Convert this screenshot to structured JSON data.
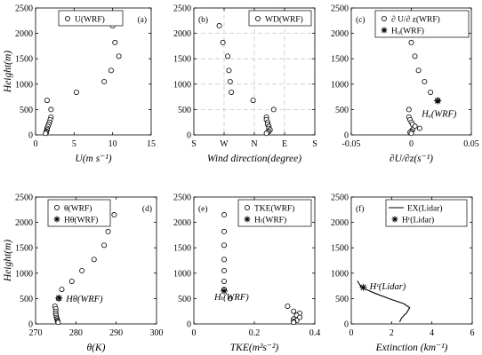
{
  "chart_data": [
    {
      "type": "scatter",
      "panel_label": "(a)",
      "xlabel": "U(m s⁻¹)",
      "ylabel": "Height(m)",
      "xlim": [
        0,
        15
      ],
      "ylim": [
        0,
        2500
      ],
      "xticks": [
        "0",
        "5",
        "10",
        "15"
      ],
      "yticks": [
        "0",
        "500",
        "1000",
        "1500",
        "2000",
        "2500"
      ],
      "grid": false,
      "legend_position": "top-left",
      "series": [
        {
          "name": "U(WRF)",
          "marker": "circle",
          "points": [
            [
              10.0,
              2150
            ],
            [
              10.3,
              1820
            ],
            [
              10.8,
              1550
            ],
            [
              9.8,
              1270
            ],
            [
              8.9,
              1050
            ],
            [
              5.3,
              840
            ],
            [
              1.5,
              680
            ],
            [
              2.0,
              500
            ],
            [
              2.0,
              350
            ],
            [
              1.9,
              300
            ],
            [
              1.8,
              250
            ],
            [
              1.7,
              210
            ],
            [
              1.6,
              170
            ],
            [
              1.5,
              130
            ],
            [
              1.5,
              100
            ],
            [
              1.4,
              70
            ],
            [
              1.4,
              50
            ],
            [
              1.3,
              30
            ]
          ]
        }
      ]
    },
    {
      "type": "scatter",
      "panel_label": "(b)",
      "xlabel": "Wind direction(degree)",
      "ylabel": "",
      "xlim": [
        0,
        5
      ],
      "ylim": [
        0,
        2500
      ],
      "xticks": [
        "S",
        "W",
        "N",
        "E",
        "S"
      ],
      "yticks": [
        "0",
        "500",
        "1000",
        "1500",
        "2000",
        "2500"
      ],
      "grid": true,
      "legend_position": "top-right",
      "series": [
        {
          "name": "WD(WRF)",
          "marker": "circle",
          "points": [
            [
              1.05,
              2150
            ],
            [
              1.2,
              1820
            ],
            [
              1.4,
              1550
            ],
            [
              1.45,
              1270
            ],
            [
              1.5,
              1050
            ],
            [
              1.55,
              840
            ],
            [
              2.45,
              680
            ],
            [
              3.3,
              500
            ],
            [
              3.0,
              350
            ],
            [
              3.0,
              300
            ],
            [
              3.05,
              250
            ],
            [
              3.05,
              210
            ],
            [
              3.1,
              170
            ],
            [
              3.1,
              130
            ],
            [
              3.15,
              100
            ],
            [
              3.1,
              70
            ],
            [
              3.05,
              50
            ],
            [
              3.0,
              30
            ]
          ]
        }
      ]
    },
    {
      "type": "scatter",
      "panel_label": "(c)",
      "xlabel": "∂U/∂z(s⁻¹)",
      "ylabel": "",
      "xlim": [
        -0.05,
        0.05
      ],
      "ylim": [
        0,
        2500
      ],
      "xticks": [
        "-0.05",
        "0",
        "0.05"
      ],
      "yticks": [
        "0",
        "500",
        "1000",
        "1500",
        "2000",
        "2500"
      ],
      "grid": false,
      "legend_position": "top-right",
      "series": [
        {
          "name": "∂ U/∂ z(WRF)",
          "marker": "circle",
          "points": [
            [
              -0.001,
              2150
            ],
            [
              0.0,
              1820
            ],
            [
              0.003,
              1550
            ],
            [
              0.006,
              1270
            ],
            [
              0.011,
              1050
            ],
            [
              0.016,
              840
            ],
            [
              0.022,
              680
            ],
            [
              -0.002,
              500
            ],
            [
              -0.002,
              350
            ],
            [
              -0.001,
              300
            ],
            [
              0.0,
              250
            ],
            [
              0.001,
              210
            ],
            [
              0.003,
              170
            ],
            [
              0.007,
              130
            ],
            [
              0.001,
              100
            ],
            [
              0.0,
              70
            ],
            [
              -0.001,
              50
            ],
            [
              0.0,
              30
            ]
          ]
        },
        {
          "name": "Hᵤ(WRF)",
          "marker": "star",
          "annotation": "Hᵤ(WRF)",
          "points": [
            [
              0.022,
              670
            ]
          ]
        }
      ]
    },
    {
      "type": "scatter",
      "panel_label": "(d)",
      "xlabel": "θ(K)",
      "ylabel": "Height(m)",
      "xlim": [
        270,
        300
      ],
      "ylim": [
        0,
        2500
      ],
      "xticks": [
        "270",
        "280",
        "290",
        "300"
      ],
      "yticks": [
        "0",
        "500",
        "1000",
        "1500",
        "2000",
        "2500"
      ],
      "grid": false,
      "legend_position": "top-left",
      "series": [
        {
          "name": "θ(WRF)",
          "marker": "circle",
          "points": [
            [
              289.5,
              2150
            ],
            [
              288.0,
              1820
            ],
            [
              287.0,
              1550
            ],
            [
              284.5,
              1270
            ],
            [
              281.5,
              1050
            ],
            [
              279.0,
              840
            ],
            [
              276.5,
              680
            ],
            [
              275.7,
              500
            ],
            [
              274.8,
              350
            ],
            [
              275.0,
              300
            ],
            [
              275.0,
              250
            ],
            [
              275.0,
              210
            ],
            [
              275.1,
              170
            ],
            [
              275.2,
              130
            ],
            [
              275.3,
              100
            ],
            [
              275.4,
              70
            ],
            [
              275.5,
              50
            ],
            [
              275.6,
              30
            ]
          ]
        },
        {
          "name": "Hθ(WRF)",
          "marker": "star",
          "annotation": "Hθ(WRF)",
          "points": [
            [
              275.8,
              510
            ]
          ]
        }
      ]
    },
    {
      "type": "scatter",
      "panel_label": "(e)",
      "xlabel": "TKE(m²s⁻²)",
      "ylabel": "",
      "xlim": [
        0,
        0.4
      ],
      "ylim": [
        0,
        2500
      ],
      "xticks": [
        "0",
        "0.2",
        "0.4"
      ],
      "yticks": [
        "0",
        "500",
        "1000",
        "1500",
        "2000",
        "2500"
      ],
      "grid": false,
      "legend_position": "top-right",
      "series": [
        {
          "name": "TKE(WRF)",
          "marker": "circle",
          "points": [
            [
              0.1,
              2150
            ],
            [
              0.1,
              1820
            ],
            [
              0.1,
              1550
            ],
            [
              0.1,
              1270
            ],
            [
              0.1,
              1050
            ],
            [
              0.1,
              840
            ],
            [
              0.1,
              680
            ],
            [
              0.12,
              500
            ],
            [
              0.31,
              350
            ],
            [
              0.33,
              250
            ],
            [
              0.35,
              210
            ],
            [
              0.34,
              170
            ],
            [
              0.35,
              130
            ],
            [
              0.33,
              100
            ],
            [
              0.34,
              70
            ],
            [
              0.33,
              50
            ],
            [
              0.33,
              30
            ]
          ]
        },
        {
          "name": "Hₜ(WRF)",
          "marker": "star",
          "annotation": "Hₜ(WRF)",
          "points": [
            [
              0.1,
              650
            ]
          ]
        }
      ]
    },
    {
      "type": "line",
      "panel_label": "(f)",
      "xlabel": "Extinction (km⁻¹)",
      "ylabel": "",
      "xlim": [
        0,
        6
      ],
      "ylim": [
        0,
        2500
      ],
      "xticks": [
        "0",
        "2",
        "4",
        "6"
      ],
      "yticks": [
        "0",
        "500",
        "1000",
        "1500",
        "2000",
        "2500"
      ],
      "grid": false,
      "legend_position": "top-right",
      "series": [
        {
          "name": "EX(Lidar)",
          "marker": "line",
          "points": [
            [
              0.3,
              850
            ],
            [
              0.5,
              720
            ],
            [
              1.2,
              600
            ],
            [
              2.0,
              480
            ],
            [
              2.6,
              400
            ],
            [
              2.9,
              320
            ],
            [
              2.75,
              220
            ],
            [
              2.5,
              120
            ],
            [
              2.4,
              40
            ]
          ]
        },
        {
          "name": "Hᶜ(Lidar)",
          "marker": "star",
          "annotation": "Hᶜ(Lidar)",
          "points": [
            [
              0.6,
              720
            ]
          ]
        }
      ]
    }
  ]
}
